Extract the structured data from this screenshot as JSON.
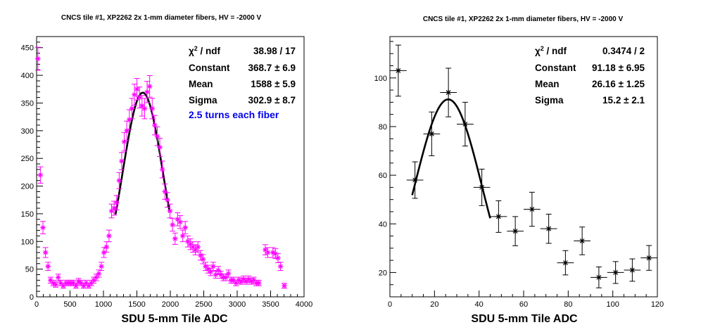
{
  "chart_data": [
    {
      "type": "scatter",
      "title": "CNCS tile #1, XP2262 2x 1-mm diameter fibers, HV = -2000 V",
      "xlabel": "SDU 5-mm Tile ADC",
      "ylabel": "",
      "xlim": [
        0,
        4000
      ],
      "ylim": [
        0,
        470
      ],
      "x_ticks": [
        0,
        500,
        1000,
        1500,
        2000,
        2500,
        3000,
        3500,
        4000
      ],
      "y_ticks": [
        0,
        50,
        100,
        150,
        200,
        250,
        300,
        350,
        400,
        450
      ],
      "marker": "star",
      "color": "#ff00ff",
      "bin_width": 38,
      "points": [
        {
          "x": 19,
          "y": 430
        },
        {
          "x": 57,
          "y": 220
        },
        {
          "x": 95,
          "y": 125
        },
        {
          "x": 133,
          "y": 80
        },
        {
          "x": 171,
          "y": 55
        },
        {
          "x": 209,
          "y": 30
        },
        {
          "x": 247,
          "y": 25
        },
        {
          "x": 285,
          "y": 22
        },
        {
          "x": 323,
          "y": 35
        },
        {
          "x": 361,
          "y": 25
        },
        {
          "x": 399,
          "y": 20
        },
        {
          "x": 437,
          "y": 25
        },
        {
          "x": 475,
          "y": 25
        },
        {
          "x": 513,
          "y": 25
        },
        {
          "x": 551,
          "y": 25
        },
        {
          "x": 589,
          "y": 20
        },
        {
          "x": 627,
          "y": 28
        },
        {
          "x": 665,
          "y": 25
        },
        {
          "x": 703,
          "y": 20
        },
        {
          "x": 741,
          "y": 25
        },
        {
          "x": 779,
          "y": 20
        },
        {
          "x": 817,
          "y": 25
        },
        {
          "x": 855,
          "y": 30
        },
        {
          "x": 893,
          "y": 35
        },
        {
          "x": 931,
          "y": 42
        },
        {
          "x": 969,
          "y": 55
        },
        {
          "x": 1007,
          "y": 80
        },
        {
          "x": 1045,
          "y": 90
        },
        {
          "x": 1083,
          "y": 110
        },
        {
          "x": 1121,
          "y": 155
        },
        {
          "x": 1159,
          "y": 160
        },
        {
          "x": 1197,
          "y": 170
        },
        {
          "x": 1235,
          "y": 210
        },
        {
          "x": 1273,
          "y": 245
        },
        {
          "x": 1311,
          "y": 280
        },
        {
          "x": 1349,
          "y": 300
        },
        {
          "x": 1387,
          "y": 320
        },
        {
          "x": 1425,
          "y": 340
        },
        {
          "x": 1463,
          "y": 365
        },
        {
          "x": 1501,
          "y": 375
        },
        {
          "x": 1539,
          "y": 360
        },
        {
          "x": 1577,
          "y": 345
        },
        {
          "x": 1615,
          "y": 340
        },
        {
          "x": 1653,
          "y": 370
        },
        {
          "x": 1691,
          "y": 380
        },
        {
          "x": 1729,
          "y": 340
        },
        {
          "x": 1767,
          "y": 310
        },
        {
          "x": 1805,
          "y": 290
        },
        {
          "x": 1843,
          "y": 270
        },
        {
          "x": 1881,
          "y": 230
        },
        {
          "x": 1919,
          "y": 190
        },
        {
          "x": 1957,
          "y": 175
        },
        {
          "x": 1995,
          "y": 155
        },
        {
          "x": 2033,
          "y": 130
        },
        {
          "x": 2071,
          "y": 105
        },
        {
          "x": 2109,
          "y": 140
        },
        {
          "x": 2147,
          "y": 135
        },
        {
          "x": 2185,
          "y": 110
        },
        {
          "x": 2223,
          "y": 125
        },
        {
          "x": 2261,
          "y": 100
        },
        {
          "x": 2299,
          "y": 95
        },
        {
          "x": 2337,
          "y": 90
        },
        {
          "x": 2375,
          "y": 85
        },
        {
          "x": 2413,
          "y": 90
        },
        {
          "x": 2451,
          "y": 75
        },
        {
          "x": 2489,
          "y": 68
        },
        {
          "x": 2527,
          "y": 55
        },
        {
          "x": 2565,
          "y": 50
        },
        {
          "x": 2603,
          "y": 45
        },
        {
          "x": 2641,
          "y": 55
        },
        {
          "x": 2679,
          "y": 40
        },
        {
          "x": 2717,
          "y": 48
        },
        {
          "x": 2755,
          "y": 40
        },
        {
          "x": 2793,
          "y": 35
        },
        {
          "x": 2831,
          "y": 35
        },
        {
          "x": 2869,
          "y": 42
        },
        {
          "x": 2907,
          "y": 30
        },
        {
          "x": 2945,
          "y": 30
        },
        {
          "x": 2983,
          "y": 25
        },
        {
          "x": 3021,
          "y": 30
        },
        {
          "x": 3059,
          "y": 28
        },
        {
          "x": 3097,
          "y": 32
        },
        {
          "x": 3135,
          "y": 28
        },
        {
          "x": 3173,
          "y": 32
        },
        {
          "x": 3211,
          "y": 28
        },
        {
          "x": 3249,
          "y": 30
        },
        {
          "x": 3287,
          "y": 25
        },
        {
          "x": 3325,
          "y": 25
        },
        {
          "x": 3420,
          "y": 85
        },
        {
          "x": 3458,
          "y": 80
        },
        {
          "x": 3534,
          "y": 80
        },
        {
          "x": 3572,
          "y": 78
        },
        {
          "x": 3610,
          "y": 70
        },
        {
          "x": 3648,
          "y": 55
        },
        {
          "x": 3705,
          "y": 20
        }
      ],
      "fit": {
        "type": "gaussian",
        "constant": 368.7,
        "mean": 1588,
        "sigma": 302.9,
        "x_range": [
          1180,
          1990
        ]
      },
      "stats": [
        {
          "label": "χ² / ndf",
          "value": "38.98 / 17"
        },
        {
          "label": "Constant",
          "value": "368.7 ± 6.9"
        },
        {
          "label": "Mean",
          "value": "1588 ± 5.9"
        },
        {
          "label": "Sigma",
          "value": "302.9 ± 8.7"
        }
      ],
      "annotation": "2.5 turns each fiber"
    },
    {
      "type": "scatter",
      "title": "CNCS tile #1, XP2262 2x 1-mm diameter fibers, HV = -2000 V",
      "xlabel": "SDU 5-mm Tile ADC",
      "ylabel": "",
      "xlim": [
        0,
        120
      ],
      "ylim": [
        10,
        117
      ],
      "x_ticks": [
        0,
        20,
        40,
        60,
        80,
        100,
        120
      ],
      "y_ticks": [
        20,
        40,
        60,
        80,
        100
      ],
      "marker": "star",
      "color": "#000000",
      "bin_width": 7.5,
      "points": [
        {
          "x": 3.75,
          "y": 103,
          "err": 10.5
        },
        {
          "x": 11.25,
          "y": 58,
          "err": 7.5
        },
        {
          "x": 18.75,
          "y": 77,
          "err": 9
        },
        {
          "x": 26.25,
          "y": 94,
          "err": 10
        },
        {
          "x": 33.75,
          "y": 81,
          "err": 9
        },
        {
          "x": 41.25,
          "y": 55,
          "err": 7.5
        },
        {
          "x": 48.75,
          "y": 43,
          "err": 6.5
        },
        {
          "x": 56.25,
          "y": 37,
          "err": 6
        },
        {
          "x": 63.75,
          "y": 46,
          "err": 7
        },
        {
          "x": 71.25,
          "y": 38,
          "err": 6
        },
        {
          "x": 78.75,
          "y": 24,
          "err": 5
        },
        {
          "x": 86.25,
          "y": 33,
          "err": 5.7
        },
        {
          "x": 93.75,
          "y": 18,
          "err": 4.3
        },
        {
          "x": 101.25,
          "y": 20,
          "err": 4.5
        },
        {
          "x": 108.75,
          "y": 21,
          "err": 4.6
        },
        {
          "x": 116.25,
          "y": 26,
          "err": 5.1
        }
      ],
      "fit": {
        "type": "gaussian",
        "constant": 91.18,
        "mean": 26.16,
        "sigma": 15.2,
        "x_range": [
          10,
          45
        ]
      },
      "stats": [
        {
          "label": "χ² / ndf",
          "value": "0.3474 / 2"
        },
        {
          "label": "Constant",
          "value": "91.18 ± 6.95"
        },
        {
          "label": "Mean",
          "value": "26.16 ± 1.25"
        },
        {
          "label": "Sigma",
          "value": "15.2 ± 2.1"
        }
      ]
    }
  ]
}
